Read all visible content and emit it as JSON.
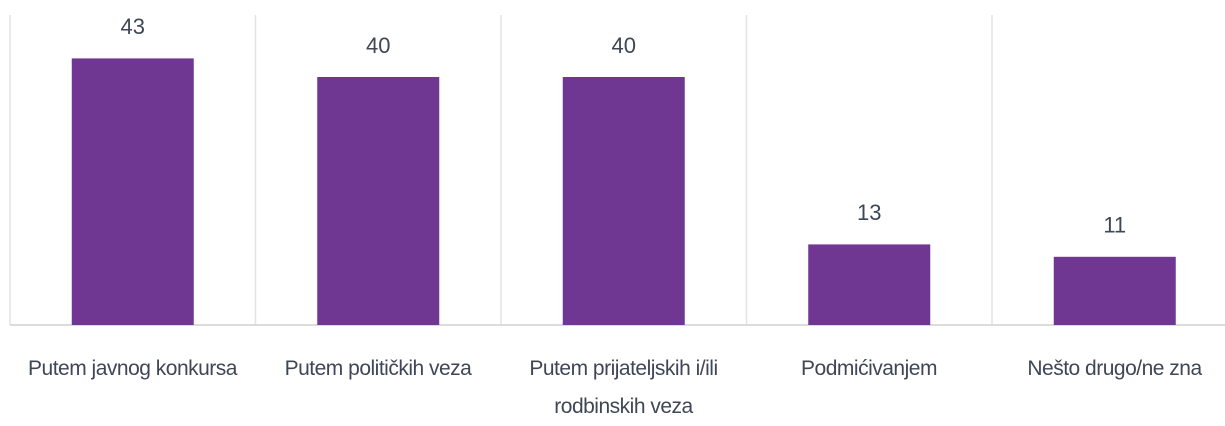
{
  "chart_data": {
    "type": "bar",
    "categories": [
      "Putem javnog konkursa",
      "Putem političkih veza",
      "Putem prijateljskih i/ili rodbinskih veza",
      "Podmićivanjem",
      "Nešto drugo/ne zna"
    ],
    "values": [
      43,
      40,
      40,
      13,
      11
    ],
    "color": "#6f3792",
    "ylim": [
      0,
      50
    ]
  }
}
